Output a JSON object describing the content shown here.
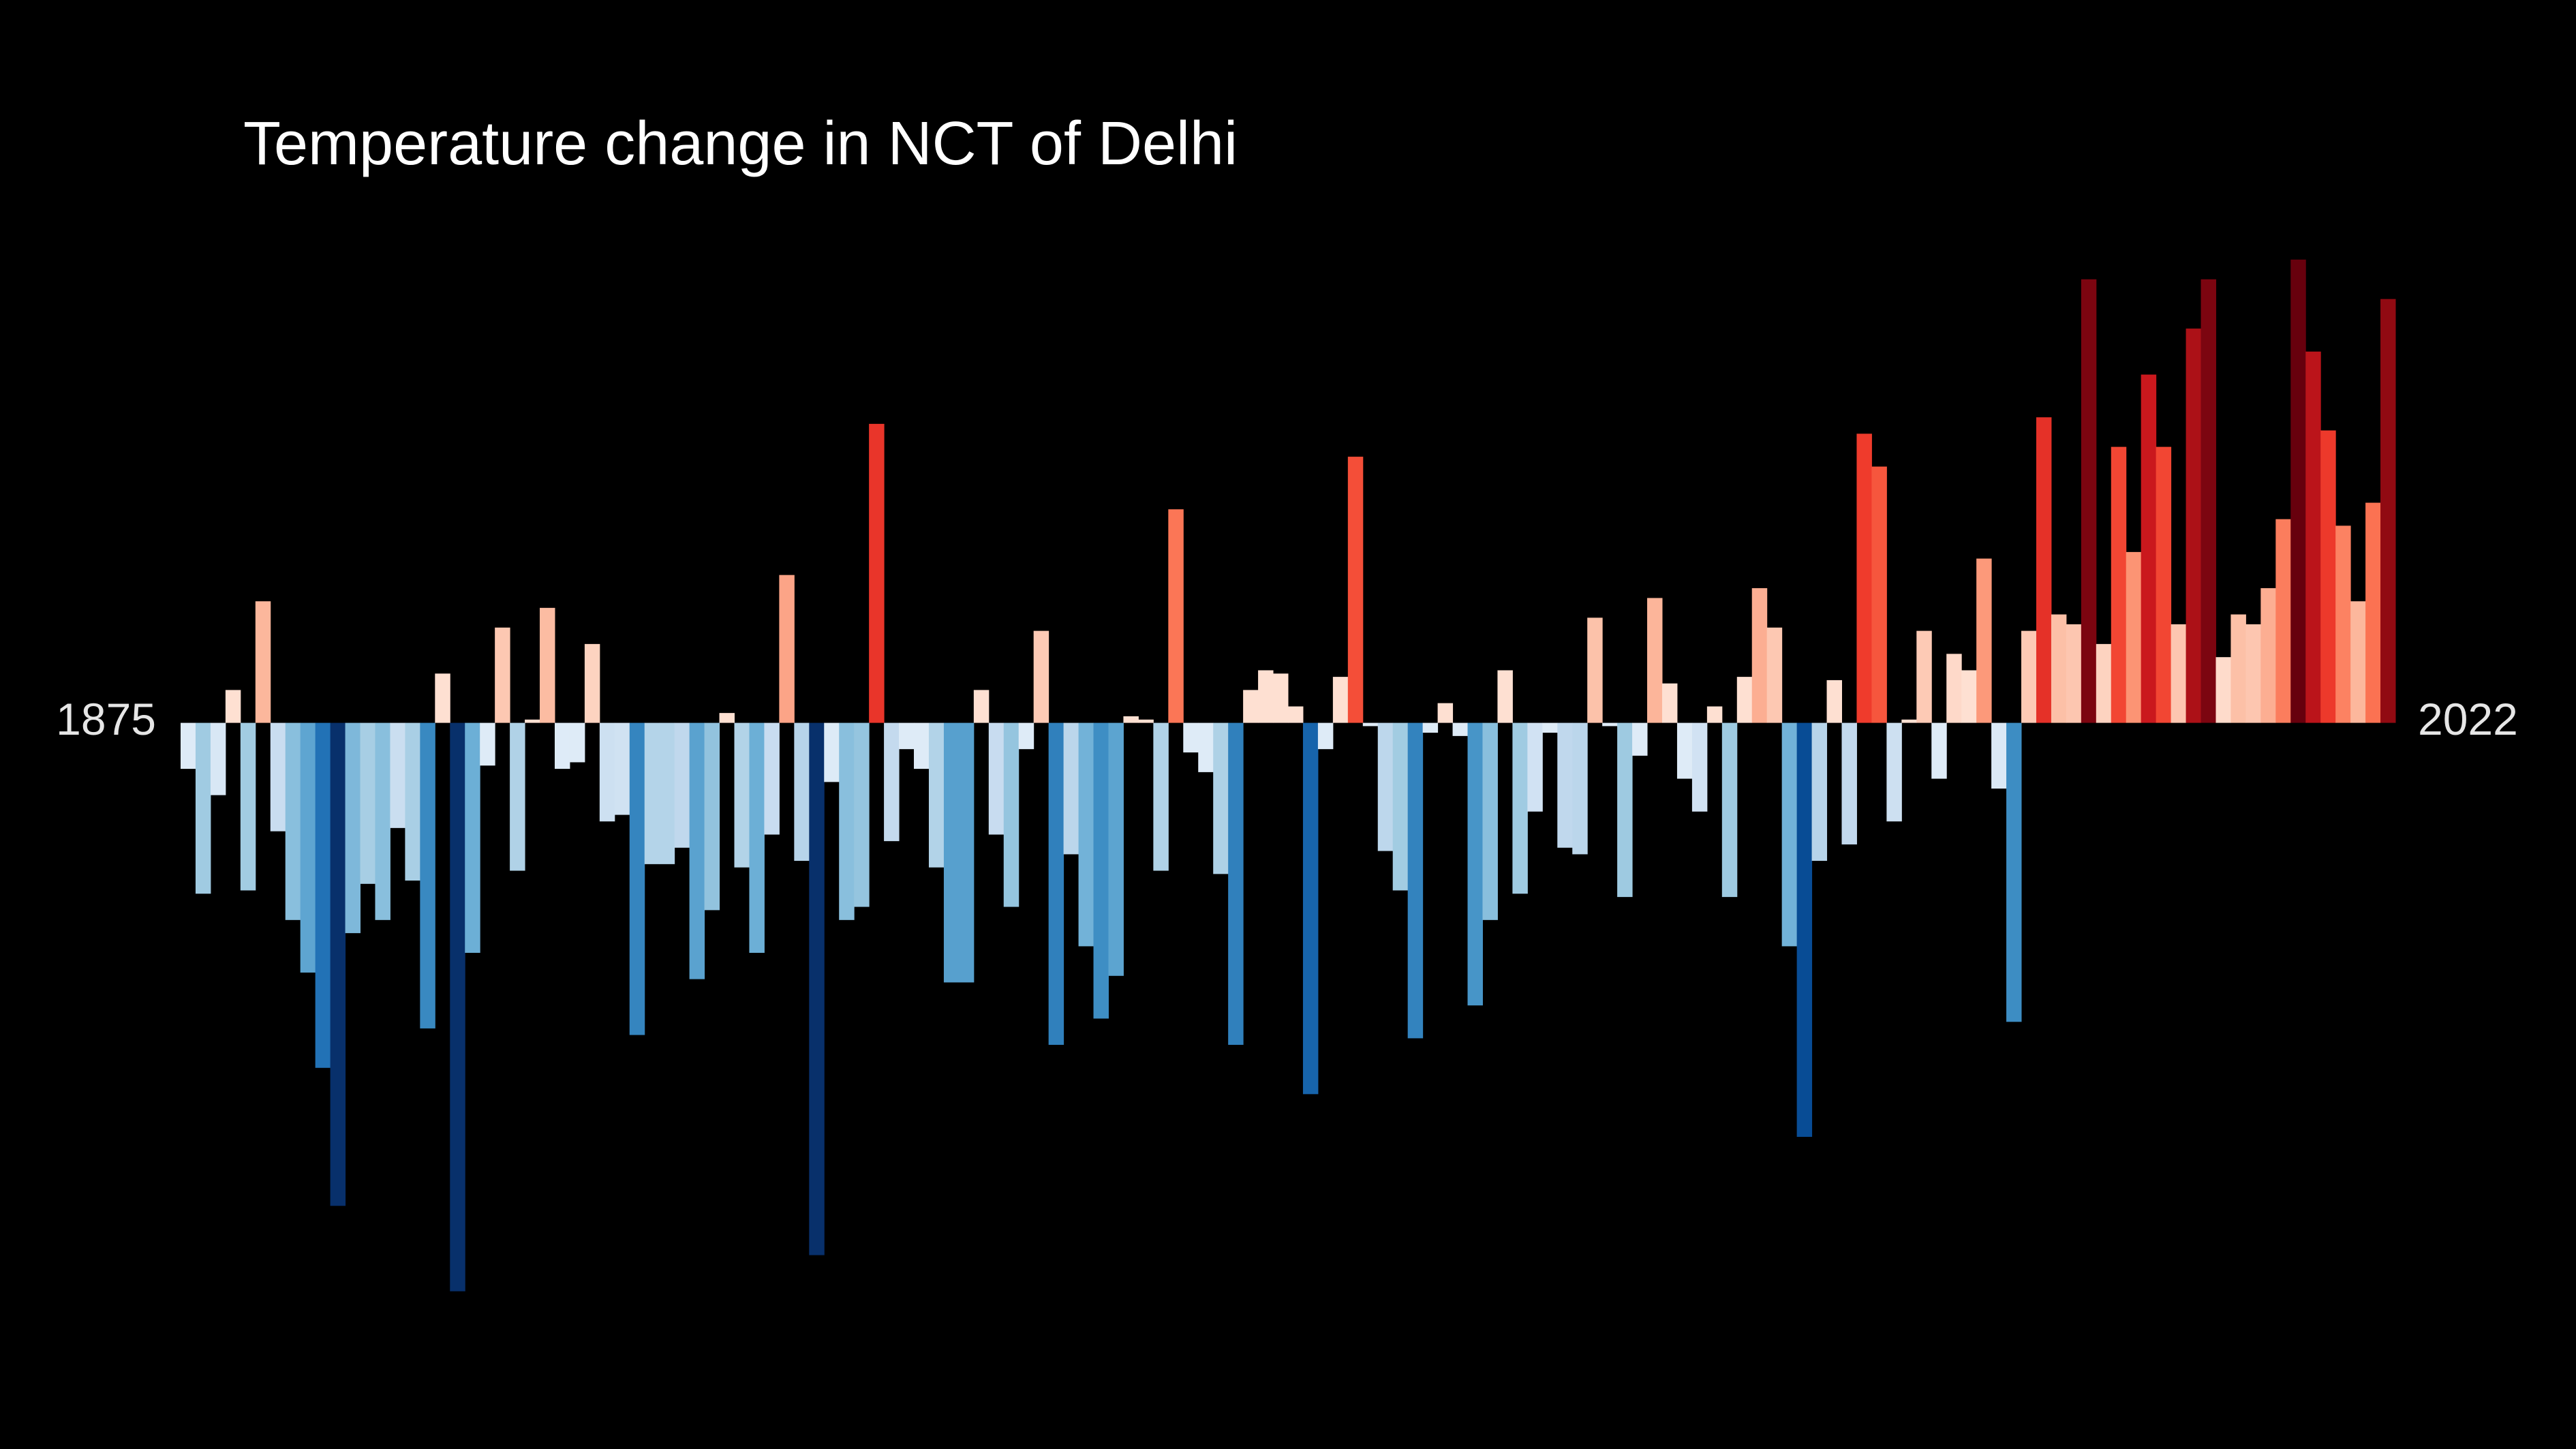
{
  "chart_data": {
    "type": "bar",
    "title": "Temperature change in NCT of Delhi",
    "categories": [
      "1875",
      null,
      null,
      null,
      null,
      null,
      null,
      null,
      null,
      null,
      null,
      null,
      null,
      null,
      null,
      null,
      null,
      null,
      null,
      null,
      null,
      null,
      null,
      null,
      null,
      null,
      null,
      null,
      null,
      null,
      null,
      null,
      null,
      null,
      null,
      null,
      null,
      null,
      null,
      null,
      null,
      null,
      null,
      null,
      null,
      null,
      null,
      null,
      null,
      null,
      null,
      null,
      null,
      null,
      null,
      null,
      null,
      null,
      null,
      null,
      null,
      null,
      null,
      null,
      null,
      null,
      null,
      null,
      null,
      null,
      null,
      null,
      null,
      null,
      null,
      null,
      null,
      null,
      null,
      null,
      null,
      null,
      null,
      null,
      null,
      null,
      null,
      null,
      null,
      null,
      null,
      null,
      null,
      null,
      null,
      null,
      null,
      null,
      null,
      null,
      null,
      null,
      null,
      null,
      null,
      null,
      null,
      null,
      null,
      null,
      null,
      null,
      null,
      null,
      null,
      null,
      null,
      null,
      null,
      null,
      null,
      null,
      null,
      null,
      null,
      null,
      null,
      null,
      null,
      null,
      null,
      null,
      null,
      null,
      null,
      null,
      null,
      null,
      null,
      null,
      null,
      null,
      null,
      null,
      null,
      null,
      null,
      "2022"
    ],
    "values": [
      -0.14,
      -0.52,
      -0.22,
      0.1,
      -0.51,
      0.37,
      -0.33,
      -0.6,
      -0.76,
      -1.05,
      -1.47,
      -0.64,
      -0.49,
      -0.6,
      -0.32,
      -0.48,
      -0.93,
      0.15,
      -1.73,
      -0.7,
      -0.13,
      0.29,
      -0.45,
      0.01,
      0.35,
      -0.14,
      -0.12,
      0.24,
      -0.3,
      -0.28,
      -0.95,
      -0.43,
      -0.43,
      -0.38,
      -0.78,
      -0.57,
      0.03,
      -0.44,
      -0.7,
      -0.34,
      0.45,
      -0.42,
      -1.62,
      -0.18,
      -0.6,
      -0.56,
      0.91,
      -0.36,
      -0.08,
      -0.14,
      -0.44,
      -0.79,
      -0.79,
      0.1,
      -0.34,
      -0.56,
      -0.08,
      0.28,
      -0.98,
      -0.4,
      -0.68,
      -0.9,
      -0.77,
      0.02,
      0.01,
      -0.45,
      0.65,
      -0.09,
      -0.15,
      -0.46,
      -0.98,
      0.1,
      0.16,
      0.15,
      0.05,
      -1.13,
      -0.08,
      0.14,
      0.81,
      -0.01,
      -0.39,
      -0.51,
      -0.96,
      -0.03,
      0.06,
      -0.04,
      -0.86,
      -0.6,
      0.16,
      -0.52,
      -0.27,
      -0.03,
      -0.38,
      -0.4,
      0.32,
      -0.01,
      -0.53,
      -0.1,
      0.38,
      0.12,
      -0.17,
      -0.27,
      0.05,
      -0.53,
      0.14,
      0.41,
      0.29,
      -0.68,
      -1.26,
      -0.42,
      0.13,
      -0.37,
      0.88,
      0.78,
      -0.3,
      0.01,
      0.28,
      -0.17,
      0.21,
      0.16,
      0.5,
      -0.2,
      -0.91,
      0.28,
      0.93,
      0.33,
      0.3,
      1.35,
      0.24,
      0.84,
      0.52,
      1.06,
      0.84,
      0.3,
      1.2,
      1.35,
      0.2,
      0.33,
      0.3,
      0.41,
      0.62,
      1.41,
      1.13,
      0.89,
      0.6,
      0.37,
      0.67,
      1.29
    ],
    "ylim": [
      -2.21,
      2.2
    ],
    "background": "#000000"
  }
}
